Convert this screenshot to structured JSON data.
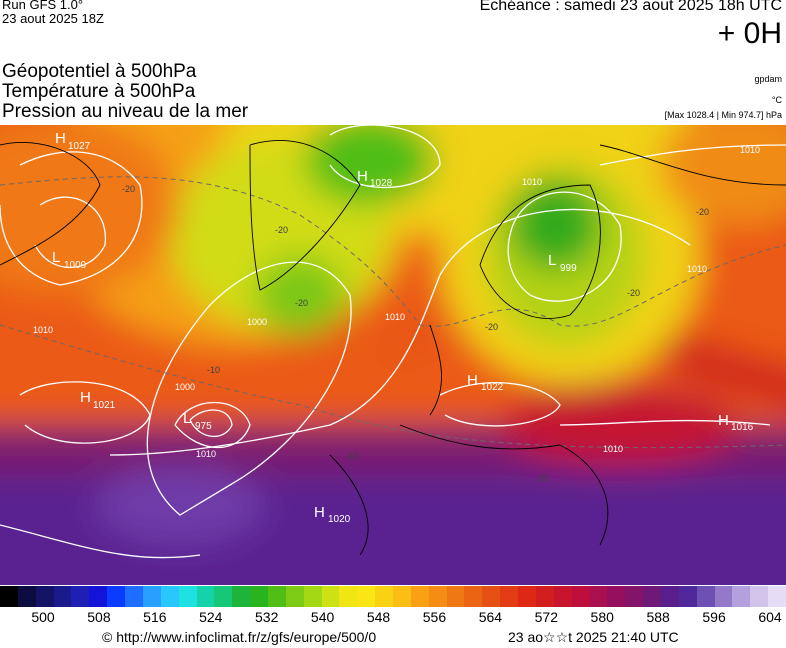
{
  "header": {
    "run": "Run GFS 1.0°",
    "run_date": "23 aout 2025 18Z",
    "echeance": "Echéance : samedi 23 aout 2025 18h UTC",
    "lead": "+ 0H"
  },
  "titles": [
    "Géopotentiel à 500hPa",
    "Température à 500hPa",
    "Pression au niveau de la mer"
  ],
  "units": {
    "geopot": "gpdam",
    "temp": "°C",
    "pressure_range": "[Max 1028.4 | Min 974.7] hPa"
  },
  "map": {
    "pressure_centers": [
      {
        "kind": "H",
        "value": "1027"
      },
      {
        "kind": "H",
        "value": "1028"
      },
      {
        "kind": "L",
        "value": "1009"
      },
      {
        "kind": "L",
        "value": "999"
      },
      {
        "kind": "H",
        "value": "1021"
      },
      {
        "kind": "L",
        "value": "975"
      },
      {
        "kind": "H",
        "value": "1022"
      },
      {
        "kind": "H",
        "value": "1016"
      },
      {
        "kind": "H",
        "value": "1020"
      }
    ],
    "isobar_labels": [
      "1010",
      "1010",
      "1010",
      "1010",
      "1000",
      "1000",
      "1010",
      "1010",
      "1010"
    ],
    "isotherm_labels": [
      "-20",
      "-20",
      "-20",
      "-20",
      "-20",
      "-10",
      "-10",
      "-10",
      "-20"
    ]
  },
  "colorbar": {
    "colors": [
      "#000000",
      "#0c0c40",
      "#141466",
      "#1a1a8c",
      "#1f1fb3",
      "#1414d9",
      "#0a3cff",
      "#1e6eff",
      "#28a0ff",
      "#28c8ff",
      "#1ee1e1",
      "#14d2aa",
      "#14c878",
      "#1eb43c",
      "#28b41e",
      "#50be14",
      "#7dcb14",
      "#a5d814",
      "#cde114",
      "#f0e614",
      "#fae614",
      "#fad214",
      "#fabe14",
      "#faa014",
      "#f58c14",
      "#f07814",
      "#eb6414",
      "#e65014",
      "#e13c14",
      "#dc2814",
      "#d21e1e",
      "#c8142d",
      "#be0f3c",
      "#aa0f50",
      "#960f5f",
      "#821469",
      "#6e1978",
      "#5a1e8c",
      "#50289b",
      "#6e50b4",
      "#9678c8",
      "#b4a0dc",
      "#d2c3eb",
      "#e6dcf5"
    ],
    "ticks": [
      "500",
      "508",
      "516",
      "524",
      "532",
      "540",
      "548",
      "556",
      "564",
      "572",
      "580",
      "588",
      "596",
      "604"
    ]
  },
  "footer": {
    "credit": "© http://www.infoclimat.fr/z/gfs/europe/500/0",
    "timestamp": "23 ao☆☆t 2025 21:40 UTC"
  }
}
